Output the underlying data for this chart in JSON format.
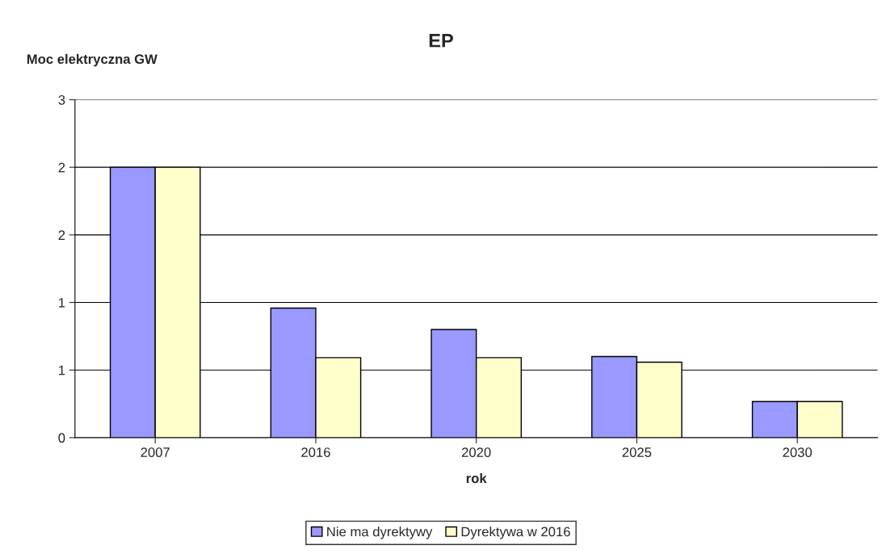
{
  "chart_data": {
    "type": "bar",
    "title": "EP",
    "xlabel": "rok",
    "ylabel": "Moc elektryczna GW",
    "categories": [
      "2007",
      "2016",
      "2020",
      "2025",
      "2030"
    ],
    "series": [
      {
        "name": "Nie ma dyrektywy",
        "color": "#9999ff",
        "values": [
          2.4,
          1.15,
          0.96,
          0.72,
          0.32
        ]
      },
      {
        "name": "Dyrektywa w 2016",
        "color": "#ffffcc",
        "values": [
          2.4,
          0.71,
          0.71,
          0.67,
          0.32
        ]
      }
    ],
    "ylim": [
      0,
      3
    ],
    "yticks": [
      0,
      {
        "value": 0.6,
        "label": "1"
      },
      {
        "value": 1.2,
        "label": "1"
      },
      {
        "value": 1.8,
        "label": "2"
      },
      {
        "value": 2.4,
        "label": "2"
      },
      3
    ],
    "grid": "y",
    "legend": "bottom"
  }
}
